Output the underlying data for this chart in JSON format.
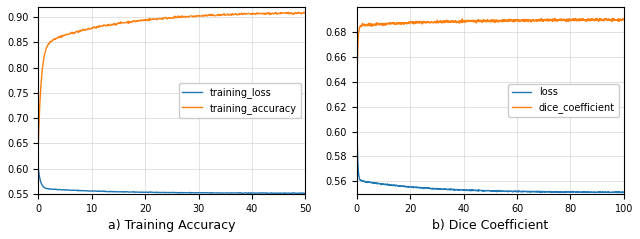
{
  "left": {
    "title": "a) Training Accuracy",
    "xlim": [
      0,
      50
    ],
    "ylim": [
      0.55,
      0.92
    ],
    "yticks": [
      0.55,
      0.6,
      0.65,
      0.7,
      0.75,
      0.8,
      0.85,
      0.9
    ],
    "xticks": [
      0,
      10,
      20,
      30,
      40,
      50
    ],
    "legend": [
      "training_loss",
      "training_accuracy"
    ],
    "loss_color": "#1f77b4",
    "acc_color": "#ff7f0e"
  },
  "right": {
    "title": "b) Dice Coefficient",
    "xlim": [
      0,
      100
    ],
    "ylim": [
      0.55,
      0.7
    ],
    "yticks": [
      0.56,
      0.58,
      0.6,
      0.62,
      0.64,
      0.66,
      0.68
    ],
    "xticks": [
      0,
      20,
      40,
      60,
      80,
      100
    ],
    "legend": [
      "loss",
      "dice_coefficient"
    ],
    "loss_color": "#1f77b4",
    "dice_color": "#ff7f0e"
  },
  "line_width": 1.0,
  "grid_color": "#cccccc",
  "grid_alpha": 0.8,
  "legend_fontsize": 7,
  "tick_fontsize": 7,
  "title_fontsize": 9
}
